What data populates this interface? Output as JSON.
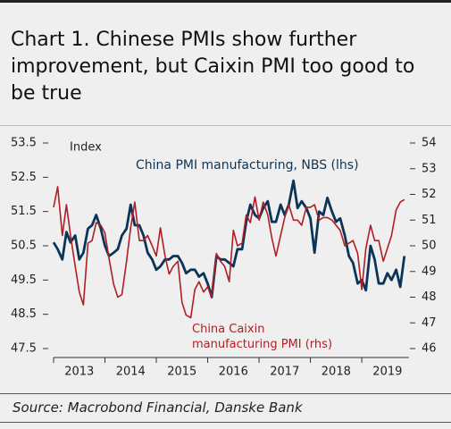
{
  "title": "Chart 1. Chinese PMIs show further improvement, but Caixin PMI too good to be true",
  "source": "Source: Macrobond Financial, Danske Bank",
  "chart_data": {
    "type": "line",
    "y_label": "Index",
    "x": [
      2013,
      2013.08,
      2013.17,
      2013.25,
      2013.33,
      2013.42,
      2013.5,
      2013.58,
      2013.67,
      2013.75,
      2013.83,
      2013.92,
      2014,
      2014.08,
      2014.17,
      2014.25,
      2014.33,
      2014.42,
      2014.5,
      2014.58,
      2014.67,
      2014.75,
      2014.83,
      2014.92,
      2015,
      2015.08,
      2015.17,
      2015.25,
      2015.33,
      2015.42,
      2015.5,
      2015.58,
      2015.67,
      2015.75,
      2015.83,
      2015.92,
      2016,
      2016.08,
      2016.17,
      2016.25,
      2016.33,
      2016.42,
      2016.5,
      2016.58,
      2016.67,
      2016.75,
      2016.83,
      2016.92,
      2017,
      2017.08,
      2017.17,
      2017.25,
      2017.33,
      2017.42,
      2017.5,
      2017.58,
      2017.67,
      2017.75,
      2017.83,
      2017.92,
      2018,
      2018.08,
      2018.17,
      2018.25,
      2018.33,
      2018.42,
      2018.5,
      2018.58,
      2018.67,
      2018.75,
      2018.83,
      2018.92,
      2019,
      2019.08,
      2019.17,
      2019.25,
      2019.33,
      2019.42,
      2019.5,
      2019.58,
      2019.67,
      2019.75,
      2019.83
    ],
    "xlim": [
      2013,
      2019.92
    ],
    "xticks": [
      {
        "value": 2013,
        "label": "2013"
      },
      {
        "value": 2014,
        "label": "2014"
      },
      {
        "value": 2015,
        "label": "2015"
      },
      {
        "value": 2016,
        "label": "2016"
      },
      {
        "value": 2017,
        "label": "2017"
      },
      {
        "value": 2018,
        "label": "2018"
      },
      {
        "value": 2019,
        "label": "2019"
      }
    ],
    "ylim": [
      47.5,
      53.5
    ],
    "yticks": [
      53.5,
      52.5,
      51.5,
      50.5,
      49.5,
      48.5,
      47.5
    ],
    "y2lim": [
      46,
      54
    ],
    "y2ticks": [
      54,
      53,
      52,
      51,
      50,
      49,
      48,
      47,
      46
    ],
    "series": [
      {
        "name": "China PMI manufacturing, NBS (lhs)",
        "color": "#0b3558",
        "axis": "y",
        "values": [
          50.6,
          50.4,
          50.1,
          50.9,
          50.6,
          50.8,
          50.1,
          50.3,
          51.0,
          51.1,
          51.4,
          51.0,
          50.5,
          50.2,
          50.3,
          50.4,
          50.8,
          51.0,
          51.7,
          51.1,
          51.1,
          50.8,
          50.3,
          50.1,
          49.8,
          49.9,
          50.1,
          50.1,
          50.2,
          50.2,
          50.0,
          49.7,
          49.8,
          49.8,
          49.6,
          49.7,
          49.4,
          49.0,
          50.2,
          50.1,
          50.1,
          50.0,
          49.9,
          50.4,
          50.4,
          51.2,
          51.7,
          51.4,
          51.3,
          51.6,
          51.8,
          51.2,
          51.2,
          51.7,
          51.4,
          51.7,
          52.4,
          51.6,
          51.8,
          51.6,
          51.3,
          50.3,
          51.5,
          51.4,
          51.9,
          51.5,
          51.2,
          51.3,
          50.8,
          50.2,
          50.0,
          49.4,
          49.5,
          49.2,
          50.5,
          50.1,
          49.4,
          49.4,
          49.7,
          49.5,
          49.8,
          49.3,
          50.2
        ]
      },
      {
        "name": "China Caixin manufacturing PMI (rhs)",
        "color": "#b01e23",
        "axis": "y2",
        "values": [
          51.5,
          52.3,
          50.4,
          51.6,
          50.4,
          49.2,
          48.2,
          47.7,
          50.1,
          50.2,
          50.9,
          50.8,
          50.5,
          49.5,
          48.5,
          48.0,
          48.1,
          49.4,
          50.7,
          51.7,
          50.2,
          50.2,
          50.4,
          50.0,
          49.6,
          50.7,
          49.6,
          48.9,
          49.2,
          49.4,
          47.8,
          47.3,
          47.2,
          48.3,
          48.6,
          48.2,
          48.4,
          48.0,
          49.7,
          49.4,
          49.2,
          48.6,
          50.6,
          50.0,
          50.1,
          51.2,
          50.9,
          51.9,
          51.0,
          51.7,
          51.2,
          50.3,
          49.6,
          50.4,
          51.1,
          51.6,
          51.0,
          51.0,
          50.8,
          51.5,
          51.5,
          51.6,
          51.0,
          51.1,
          51.1,
          51.0,
          50.8,
          50.6,
          50.0,
          50.1,
          50.2,
          49.7,
          48.3,
          49.9,
          50.8,
          50.2,
          50.2,
          49.4,
          49.9,
          50.4,
          51.4,
          51.7,
          51.8
        ]
      }
    ]
  }
}
